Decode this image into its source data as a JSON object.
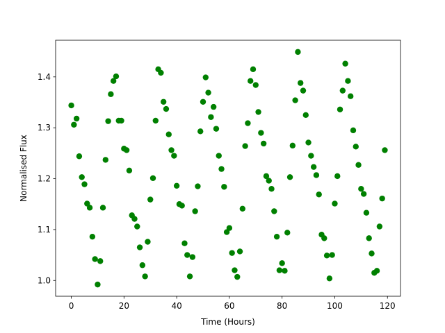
{
  "chart_data": {
    "type": "scatter",
    "xlabel": "Time (Hours)",
    "ylabel": "Normalised Flux",
    "x": [
      0,
      1,
      2,
      3,
      4,
      5,
      6,
      7,
      8,
      9,
      10,
      11,
      12,
      13,
      14,
      15,
      16,
      17,
      18,
      19,
      20,
      21,
      22,
      23,
      24,
      25,
      26,
      27,
      28,
      29,
      30,
      31,
      32,
      33,
      34,
      35,
      36,
      37,
      38,
      39,
      40,
      41,
      42,
      43,
      44,
      45,
      46,
      47,
      48,
      49,
      50,
      51,
      52,
      53,
      54,
      55,
      56,
      57,
      58,
      59,
      60,
      61,
      62,
      63,
      64,
      65,
      66,
      67,
      68,
      69,
      70,
      71,
      72,
      73,
      74,
      75,
      76,
      77,
      78,
      79,
      80,
      81,
      82,
      83,
      84,
      85,
      86,
      87,
      88,
      89,
      90,
      91,
      92,
      93,
      94,
      95,
      96,
      97,
      98,
      99,
      100,
      101,
      102,
      103,
      104,
      105,
      106,
      107,
      108,
      109,
      110,
      111,
      112,
      113,
      114,
      115,
      116,
      117,
      118,
      119
    ],
    "values": [
      1.344,
      1.306,
      1.318,
      1.244,
      1.203,
      1.189,
      1.151,
      1.143,
      1.086,
      1.042,
      0.992,
      1.038,
      1.143,
      1.237,
      1.313,
      1.366,
      1.392,
      1.401,
      1.314,
      1.314,
      1.259,
      1.256,
      1.216,
      1.128,
      1.121,
      1.106,
      1.065,
      1.03,
      1.008,
      1.076,
      1.159,
      1.201,
      1.314,
      1.415,
      1.408,
      1.351,
      1.337,
      1.287,
      1.256,
      1.245,
      1.186,
      1.15,
      1.147,
      1.073,
      1.05,
      1.008,
      1.046,
      1.136,
      1.185,
      1.293,
      1.351,
      1.399,
      1.369,
      1.321,
      1.341,
      1.298,
      1.245,
      1.219,
      1.184,
      1.095,
      1.103,
      1.054,
      1.02,
      1.007,
      1.057,
      1.141,
      1.264,
      1.309,
      1.392,
      1.415,
      1.384,
      1.331,
      1.29,
      1.269,
      1.205,
      1.196,
      1.18,
      1.136,
      1.086,
      1.02,
      1.034,
      1.019,
      1.094,
      1.203,
      1.265,
      1.354,
      1.449,
      1.388,
      1.373,
      1.325,
      1.271,
      1.245,
      1.223,
      1.207,
      1.169,
      1.09,
      1.083,
      1.049,
      1.004,
      1.05,
      1.151,
      1.205,
      1.336,
      1.373,
      1.426,
      1.392,
      1.362,
      1.295,
      1.263,
      1.227,
      1.18,
      1.17,
      1.133,
      1.083,
      1.053,
      1.015,
      1.019,
      1.106,
      1.161,
      1.256
    ],
    "color": "#008000",
    "xlim": [
      -5.95,
      124.95
    ],
    "xticks": [
      0,
      20,
      40,
      60,
      80,
      100,
      120
    ],
    "ylim": [
      0.969,
      1.472
    ],
    "yticks": [
      {
        "value": 1,
        "label": "1.0"
      },
      1.1,
      1.2,
      1.3,
      1.4
    ],
    "grid": false
  }
}
